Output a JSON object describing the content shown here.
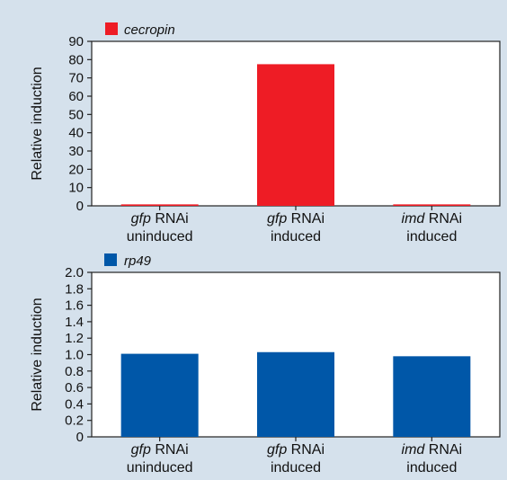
{
  "chart_data": [
    {
      "type": "bar",
      "legend": {
        "label": "cecropin",
        "color": "#ee1c25",
        "position": "top-left"
      },
      "ylabel": "Relative induction",
      "ylim": [
        0,
        90
      ],
      "yticks": [
        0,
        10,
        20,
        30,
        40,
        50,
        60,
        70,
        80,
        90
      ],
      "categories": [
        {
          "italic": "gfp",
          "text": " RNAi",
          "line2": "uninduced"
        },
        {
          "italic": "gfp",
          "text": " RNAi",
          "line2": "induced"
        },
        {
          "italic": "imd",
          "text": " RNAi",
          "line2": "induced"
        }
      ],
      "series": [
        {
          "name": "cecropin",
          "color": "#ee1c25",
          "values": [
            0.8,
            77.5,
            0.8
          ]
        }
      ],
      "grid": false
    },
    {
      "type": "bar",
      "legend": {
        "label": "rp49",
        "color": "#0057a8",
        "position": "top-left"
      },
      "ylabel": "Relative induction",
      "ylim": [
        0,
        2.0
      ],
      "yticks": [
        "0",
        "0.2",
        "0.4",
        "0.6",
        "0.8",
        "1.0",
        "1.2",
        "1.4",
        "1.6",
        "1.8",
        "2.0"
      ],
      "categories": [
        {
          "italic": "gfp",
          "text": " RNAi",
          "line2": "uninduced"
        },
        {
          "italic": "gfp",
          "text": " RNAi",
          "line2": "induced"
        },
        {
          "italic": "imd",
          "text": " RNAi",
          "line2": "induced"
        }
      ],
      "series": [
        {
          "name": "rp49",
          "color": "#0057a8",
          "values": [
            1.01,
            1.03,
            0.98
          ]
        }
      ],
      "grid": false
    }
  ]
}
